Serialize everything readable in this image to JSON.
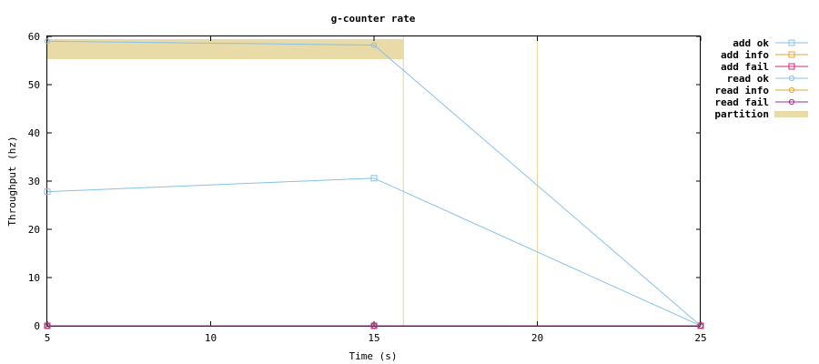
{
  "chart_data": {
    "type": "line",
    "title": "g-counter rate",
    "xlabel": "Time (s)",
    "ylabel": "Throughput (hz)",
    "xlim": [
      5,
      25
    ],
    "ylim": [
      0,
      60
    ],
    "xticks": [
      5,
      10,
      15,
      20,
      25
    ],
    "yticks": [
      0,
      10,
      20,
      30,
      40,
      50,
      60
    ],
    "grid": false,
    "legend_position": "right",
    "series": [
      {
        "name": "add ok",
        "color": "#87c1e8",
        "marker": "square",
        "x": [
          5,
          15,
          25
        ],
        "y": [
          27.8,
          30.6,
          0
        ]
      },
      {
        "name": "add info",
        "color": "#e6a532",
        "marker": "square",
        "x": [
          5,
          15,
          25
        ],
        "y": [
          0,
          0,
          0
        ]
      },
      {
        "name": "add fail",
        "color": "#d62a7a",
        "marker": "square",
        "x": [
          5,
          15,
          25
        ],
        "y": [
          0,
          0,
          0
        ]
      },
      {
        "name": "read ok",
        "color": "#87c1e8",
        "marker": "circle",
        "x": [
          5,
          15,
          25
        ],
        "y": [
          59,
          58.2,
          0
        ]
      },
      {
        "name": "read info",
        "color": "#e6a532",
        "marker": "circle",
        "x": [
          5,
          15,
          25
        ],
        "y": [
          0,
          0,
          0
        ]
      },
      {
        "name": "read fail",
        "color": "#a0308e",
        "marker": "circle",
        "x": [
          5,
          15,
          25
        ],
        "y": [
          0,
          0,
          0
        ]
      }
    ],
    "partition": {
      "name": "partition",
      "color": "#e8dba8",
      "intervals": [
        [
          5,
          15.9
        ],
        [
          20,
          20
        ]
      ]
    }
  }
}
